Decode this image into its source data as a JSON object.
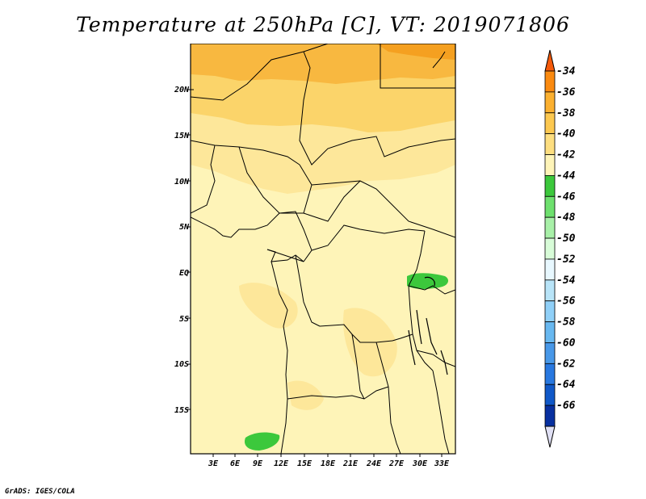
{
  "title": "Temperature at 250hPa [C], VT: 2019071806",
  "credit": "GrADS: IGES/COLA",
  "map": {
    "lat_labels": [
      "20N",
      "15N",
      "10N",
      "5N",
      "EQ",
      "5S",
      "10S",
      "15S"
    ],
    "lon_labels": [
      "3E",
      "6E",
      "9E",
      "12E",
      "15E",
      "18E",
      "21E",
      "24E",
      "27E",
      "30E",
      "33E"
    ],
    "colors": {
      "c36_34": "#f5a020",
      "c38_36": "#f8b840",
      "c40_38": "#fbd46a",
      "c42_40": "#fde79a",
      "c44_42": "#fef4b8",
      "c46_44": "#3cc83c"
    }
  },
  "colorbar": {
    "levels": [
      "-34",
      "-36",
      "-38",
      "-40",
      "-42",
      "-44",
      "-46",
      "-48",
      "-50",
      "-52",
      "-54",
      "-56",
      "-58",
      "-60",
      "-62",
      "-64",
      "-66"
    ],
    "colors": [
      "#fa8a10",
      "#fbb030",
      "#fcc850",
      "#fdde80",
      "#fef4b8",
      "#3cc83c",
      "#6ee06e",
      "#a8f0a8",
      "#d8fcd8",
      "#e8f8ff",
      "#b8e4f8",
      "#90d0f8",
      "#68b8f0",
      "#4898e8",
      "#2878e0",
      "#1058c8",
      "#0830a0",
      "#082070"
    ],
    "top_color": "#f55a0a",
    "bottom_color": "#e0e0f4"
  }
}
